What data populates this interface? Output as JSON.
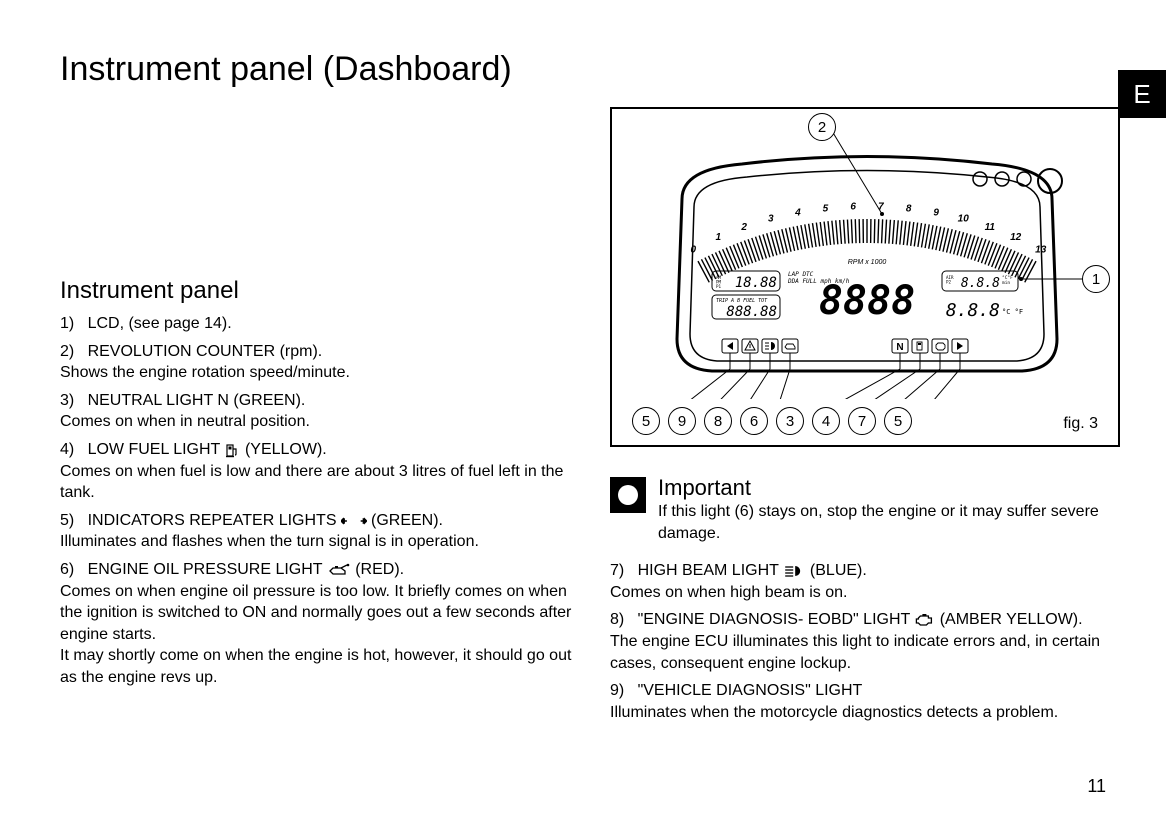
{
  "section_letter": "E",
  "page_title": "Instrument panel (Dashboard)",
  "page_number": "11",
  "figure": {
    "label": "fig. 3",
    "top_callout": "2",
    "right_callout": "1",
    "bottom_callouts": [
      "5",
      "9",
      "8",
      "6",
      "3",
      "4",
      "7",
      "5"
    ],
    "rpm_scale": [
      "0",
      "1",
      "2",
      "3",
      "4",
      "5",
      "6",
      "7",
      "8",
      "9",
      "10",
      "11",
      "12",
      "13"
    ],
    "rpm_label": "RPM x 1000",
    "lcd_left_top": "18.88",
    "lcd_left_top_prefix_lines": [
      "AM",
      "PM",
      "P1"
    ],
    "lcd_left_bottom": "888.88",
    "lcd_left_bottom_prefix": "TRIP A B FUEL TOT",
    "lcd_center": "8888",
    "lcd_center_above": "LAP  DTC\nDDA FULL    mph  km/h",
    "lcd_right_top": "8.8.8",
    "lcd_right_top_prefix_lines": [
      "AIR",
      "P2"
    ],
    "lcd_right_top_suffix": "°C°F\nmin",
    "lcd_right_bottom": "8.8.8",
    "lcd_right_bottom_suffix": "°C °F",
    "indicator_icons": [
      "turn-left",
      "warning-triangle",
      "high-beam",
      "oil-can",
      "neutral",
      "fuel-pump",
      "eobd",
      "turn-right"
    ]
  },
  "left_column": {
    "subheading": "Instrument panel",
    "items": [
      {
        "num": "1)",
        "title": "LCD, (see page 14)."
      },
      {
        "num": "2)",
        "title": "REVOLUTION COUNTER (rpm).",
        "desc": "Shows the engine rotation speed/minute."
      },
      {
        "num": "3)",
        "title": "NEUTRAL LIGHT N (GREEN).",
        "desc": "Comes on when in neutral position."
      },
      {
        "num": "4)",
        "title": "LOW FUEL LIGHT",
        "icon": "fuel-pump",
        "suffix": "(YELLOW).",
        "desc": "Comes on when fuel is low and there are about 3 litres of fuel left in the tank."
      },
      {
        "num": "5)",
        "title": "INDICATORS REPEATER LIGHTS",
        "icon": "arrows-lr",
        "suffix": "(GREEN).",
        "desc": "Illuminates and flashes when the turn signal is in operation."
      },
      {
        "num": "6)",
        "title": "ENGINE OIL PRESSURE LIGHT",
        "icon": "oil-can",
        "suffix": "(RED).",
        "desc": "Comes on when engine oil pressure is too low. It briefly comes on when the ignition is switched to ON and normally goes out a few seconds after engine starts.\nIt may shortly come on when the engine is hot, however, it should go out as the engine revs up."
      }
    ]
  },
  "important": {
    "title": "Important",
    "text": "If this light (6) stays on, stop the engine or it may suffer severe damage."
  },
  "right_items": [
    {
      "num": "7)",
      "title": "HIGH BEAM LIGHT",
      "icon": "high-beam",
      "suffix": "(BLUE).",
      "desc": "Comes on when high beam is on."
    },
    {
      "num": "8)",
      "title": "\"ENGINE DIAGNOSIS- EOBD\" LIGHT",
      "icon": "engine",
      "suffix": "(AMBER YELLOW).",
      "desc": "The engine ECU illuminates this light to indicate errors and, in certain cases, consequent engine lockup."
    },
    {
      "num": "9)",
      "title": "\"VEHICLE DIAGNOSIS\" LIGHT",
      "desc": "Illuminates when the motorcycle diagnostics detects a problem."
    }
  ]
}
